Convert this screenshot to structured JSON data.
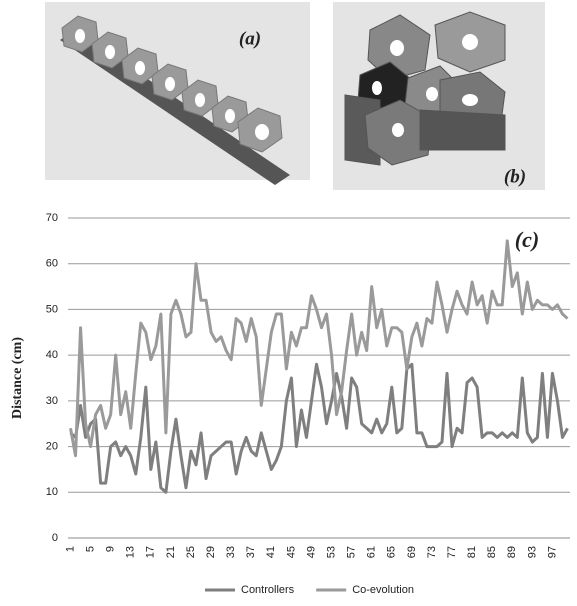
{
  "panel_labels": [
    "(a)",
    "(b)"
  ],
  "chart_data": {
    "type": "line",
    "annotation": "(c)",
    "ylabel": "Distance (cm)",
    "categories": [
      1,
      null,
      null,
      null,
      5,
      null,
      null,
      null,
      9,
      null,
      null,
      null,
      13,
      null,
      null,
      null,
      17,
      null,
      null,
      null,
      21,
      null,
      null,
      null,
      25,
      null,
      null,
      null,
      29,
      null,
      null,
      null,
      33,
      null,
      null,
      null,
      37,
      null,
      null,
      null,
      41,
      null,
      null,
      null,
      45,
      null,
      null,
      null,
      49,
      null,
      null,
      null,
      53,
      null,
      null,
      null,
      57,
      null,
      null,
      null,
      61,
      null,
      null,
      null,
      65,
      null,
      null,
      null,
      69,
      null,
      null,
      null,
      73,
      null,
      null,
      null,
      77,
      null,
      null,
      null,
      81,
      null,
      null,
      null,
      85,
      null,
      null,
      null,
      89,
      null,
      null,
      null,
      93,
      null,
      null,
      null,
      97,
      null,
      null,
      null
    ],
    "series": [
      {
        "name": "Controllers",
        "color": "#7f7f7f",
        "values": [
          23,
          22,
          29,
          22,
          25,
          26,
          12,
          12,
          20,
          21,
          18,
          20,
          18,
          14,
          22,
          33,
          15,
          21,
          11,
          10,
          19,
          26,
          18,
          11,
          19,
          16,
          23,
          13,
          18,
          19,
          20,
          21,
          21,
          14,
          19,
          22,
          19,
          18,
          23,
          19,
          15,
          17,
          20,
          30,
          35,
          20,
          28,
          22,
          30,
          38,
          33,
          25,
          30,
          36,
          31,
          24,
          35,
          33,
          25,
          24,
          23,
          26,
          23,
          25,
          33,
          23,
          24,
          37,
          38,
          23,
          23,
          20,
          20,
          20,
          21,
          36,
          20,
          24,
          23,
          34,
          35,
          33,
          22,
          23,
          23,
          22,
          23,
          22,
          23,
          22,
          35,
          23,
          21,
          22,
          36,
          22,
          36,
          30,
          22,
          24
        ]
      },
      {
        "name": "Co-evolution",
        "color": "#9a9a9a",
        "values": [
          24,
          18,
          46,
          25,
          20,
          27,
          29,
          24,
          27,
          40,
          27,
          32,
          24,
          36,
          47,
          45,
          39,
          42,
          49,
          23,
          49,
          52,
          49,
          44,
          45,
          60,
          52,
          52,
          45,
          43,
          44,
          41,
          39,
          48,
          47,
          43,
          48,
          44,
          29,
          37,
          45,
          49,
          49,
          37,
          45,
          42,
          46,
          46,
          53,
          50,
          46,
          49,
          40,
          27,
          32,
          41,
          49,
          40,
          45,
          41,
          55,
          46,
          50,
          42,
          46,
          46,
          45,
          37,
          44,
          47,
          42,
          48,
          47,
          56,
          51,
          45,
          50,
          54,
          51,
          49,
          56,
          51,
          53,
          47,
          54,
          51,
          51,
          65,
          55,
          58,
          49,
          56,
          50,
          52,
          51,
          51,
          50,
          51,
          49,
          48
        ]
      }
    ],
    "ylim": [
      0,
      70
    ],
    "yticks": [
      0,
      10,
      20,
      30,
      40,
      50,
      60,
      70
    ],
    "grid": true
  }
}
